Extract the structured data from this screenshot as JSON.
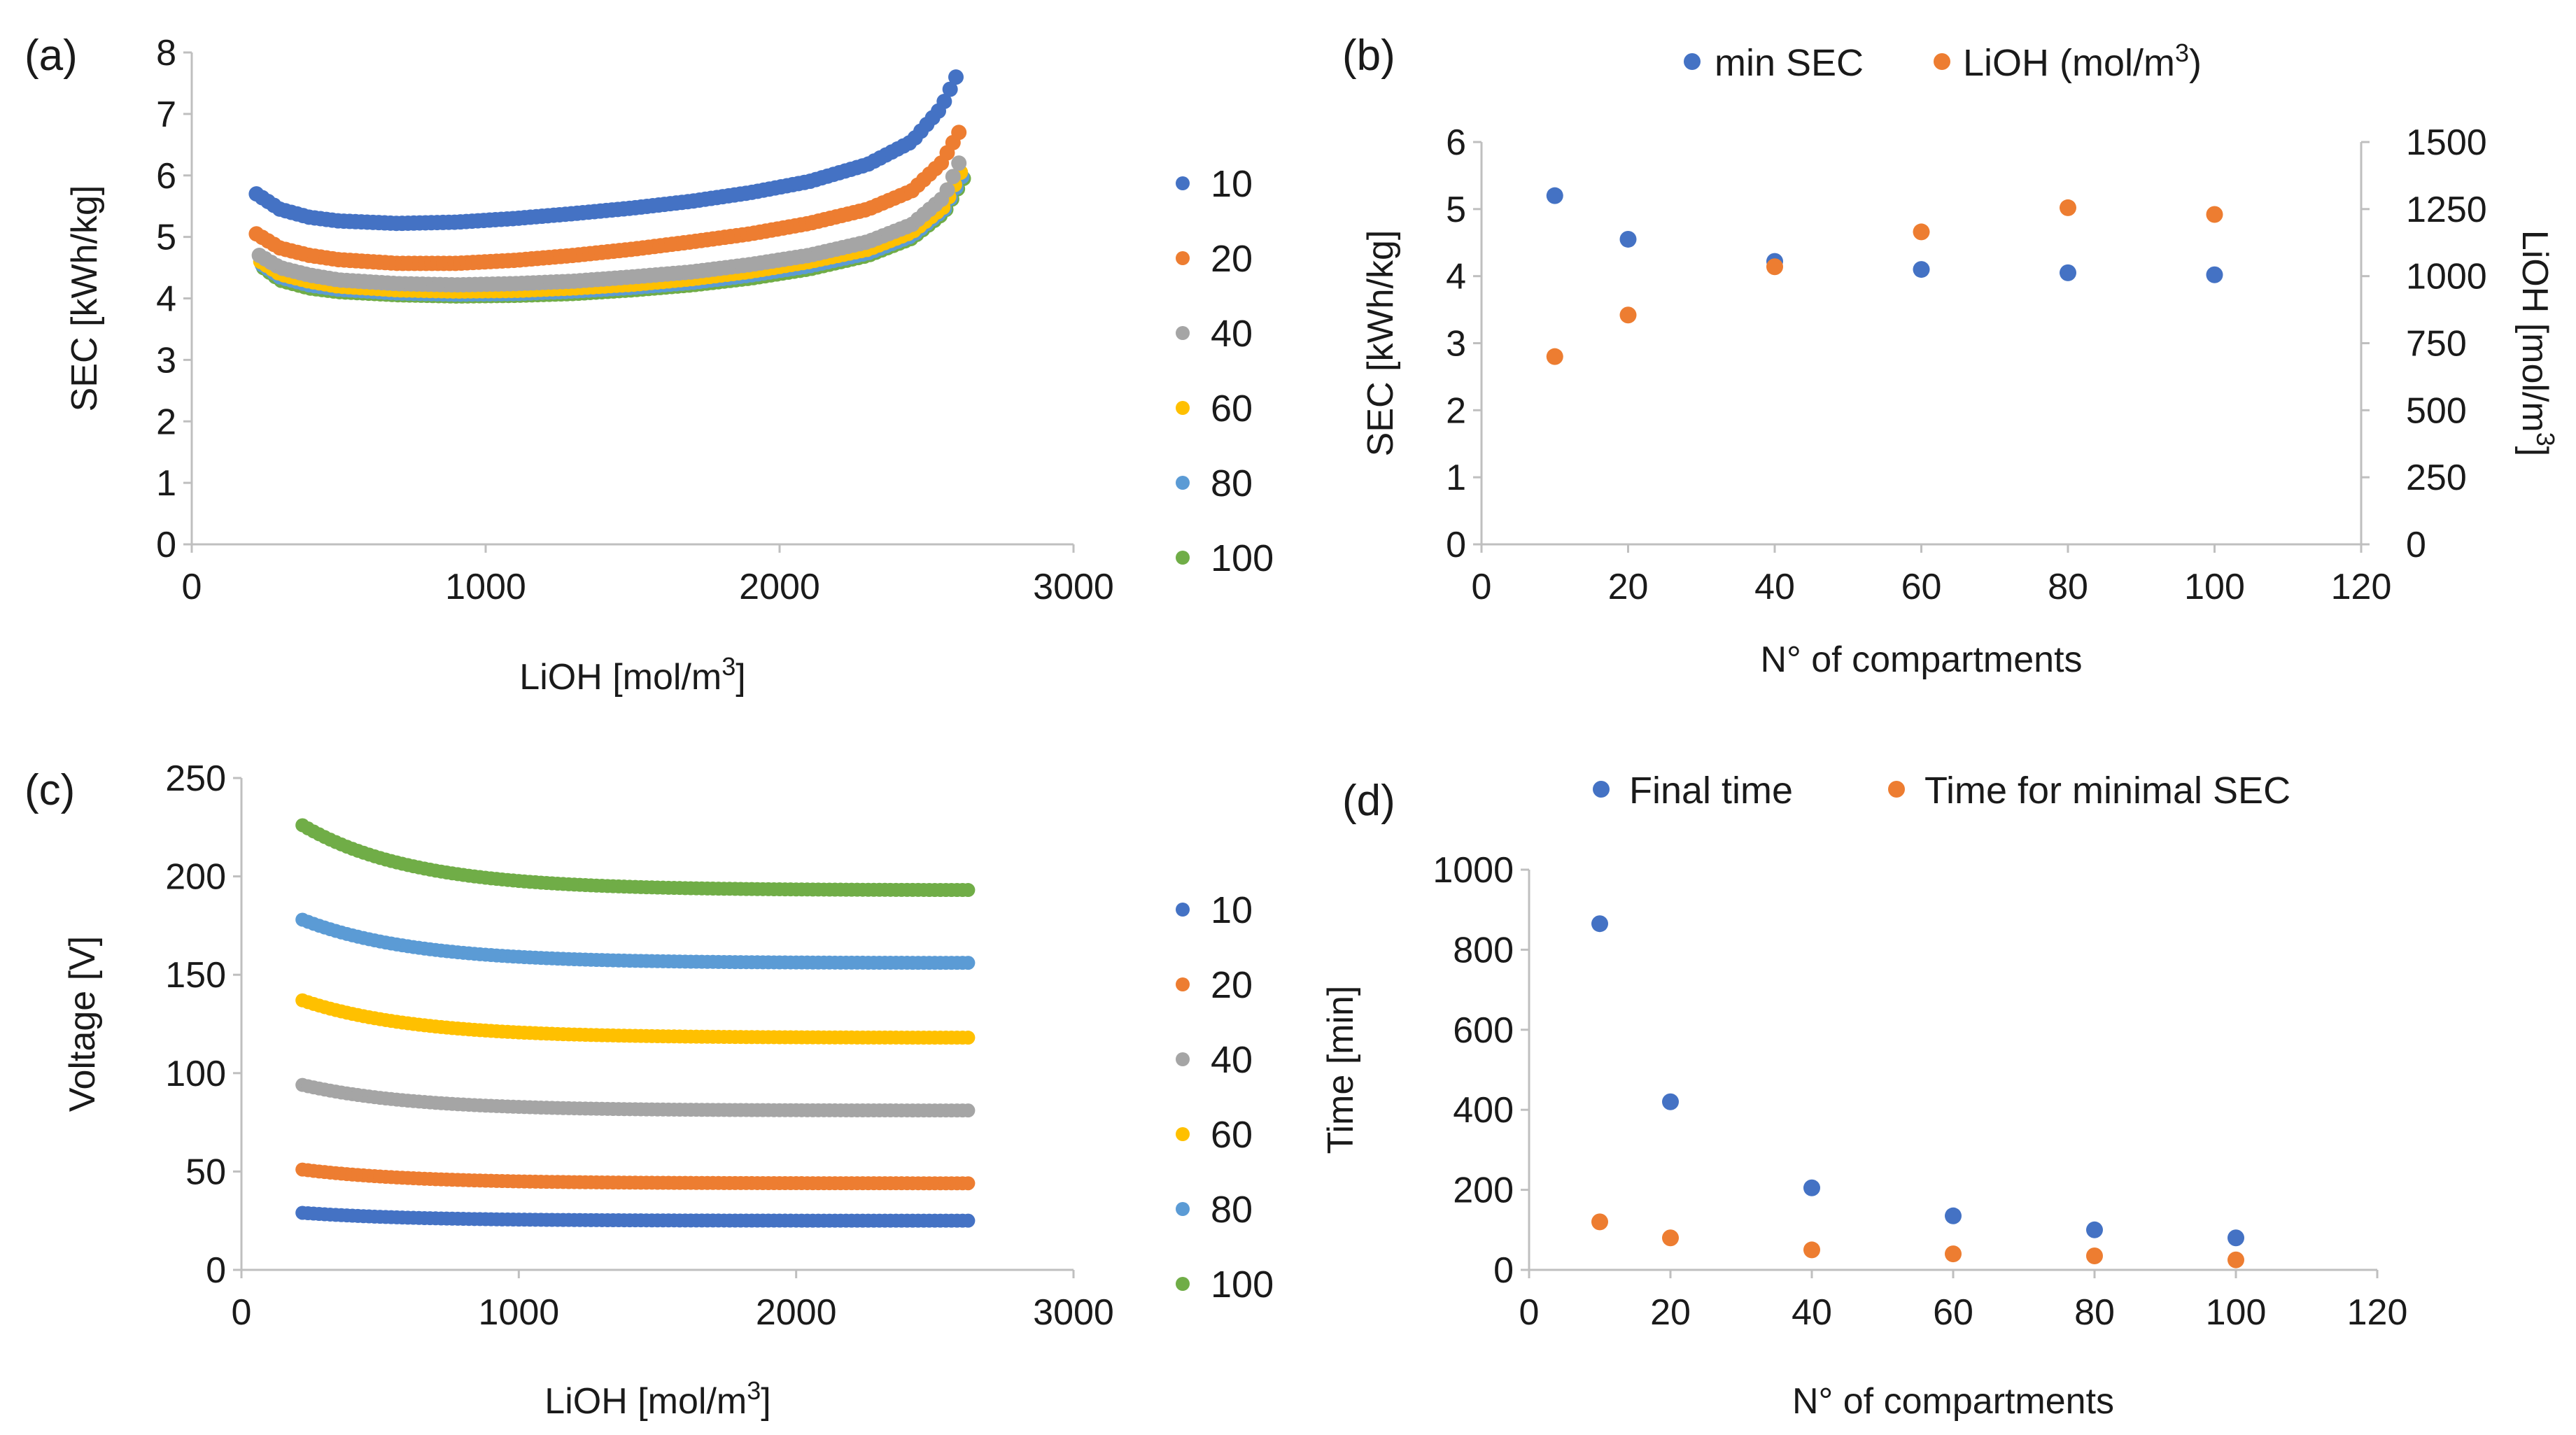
{
  "figure": {
    "panels": [
      {
        "letter": "(a)"
      },
      {
        "letter": "(b)"
      },
      {
        "letter": "(c)"
      },
      {
        "letter": "(d)"
      }
    ]
  },
  "colors": {
    "series_10": "#4472C4",
    "series_20": "#ED7D31",
    "series_40": "#A5A5A5",
    "series_60": "#FFC000",
    "series_80": "#5B9BD5",
    "series_100": "#70AD47"
  },
  "chart_data": [
    {
      "id": "a",
      "type": "scatter",
      "title": "",
      "xlabel": "LiOH [mol/m",
      "xlabel_sup": "3",
      "xlabel_end": "]",
      "ylabel": "SEC [kWh/kg]",
      "xlim": [
        0,
        3000
      ],
      "ylim": [
        0,
        8
      ],
      "xticks": [
        "0",
        "1000",
        "2000",
        "3000"
      ],
      "yticks": [
        "0",
        "1",
        "2",
        "3",
        "4",
        "5",
        "6",
        "7",
        "8"
      ],
      "legend": [
        "10",
        "20",
        "40",
        "60",
        "80",
        "100"
      ],
      "series": [
        {
          "name": "10",
          "color": "#4472C4",
          "points": [
            [
              220,
              5.7
            ],
            [
              300,
              5.45
            ],
            [
              400,
              5.32
            ],
            [
              500,
              5.26
            ],
            [
              700,
              5.22
            ],
            [
              900,
              5.24
            ],
            [
              1100,
              5.3
            ],
            [
              1300,
              5.38
            ],
            [
              1500,
              5.47
            ],
            [
              1700,
              5.58
            ],
            [
              1900,
              5.72
            ],
            [
              2100,
              5.9
            ],
            [
              2300,
              6.18
            ],
            [
              2450,
              6.55
            ],
            [
              2550,
              7.1
            ],
            [
              2600,
              7.6
            ]
          ]
        },
        {
          "name": "20",
          "color": "#ED7D31",
          "points": [
            [
              220,
              5.05
            ],
            [
              300,
              4.82
            ],
            [
              400,
              4.7
            ],
            [
              500,
              4.63
            ],
            [
              700,
              4.57
            ],
            [
              900,
              4.57
            ],
            [
              1100,
              4.62
            ],
            [
              1300,
              4.7
            ],
            [
              1500,
              4.8
            ],
            [
              1700,
              4.92
            ],
            [
              1900,
              5.05
            ],
            [
              2100,
              5.22
            ],
            [
              2300,
              5.45
            ],
            [
              2450,
              5.75
            ],
            [
              2550,
              6.2
            ],
            [
              2610,
              6.7
            ]
          ]
        },
        {
          "name": "40",
          "color": "#A5A5A5",
          "points": [
            [
              230,
              4.7
            ],
            [
              300,
              4.5
            ],
            [
              400,
              4.38
            ],
            [
              500,
              4.3
            ],
            [
              700,
              4.24
            ],
            [
              900,
              4.22
            ],
            [
              1100,
              4.24
            ],
            [
              1300,
              4.28
            ],
            [
              1500,
              4.35
            ],
            [
              1700,
              4.43
            ],
            [
              1900,
              4.55
            ],
            [
              2100,
              4.7
            ],
            [
              2300,
              4.92
            ],
            [
              2450,
              5.2
            ],
            [
              2560,
              5.65
            ],
            [
              2610,
              6.2
            ]
          ]
        },
        {
          "name": "60",
          "color": "#FFC000",
          "points": [
            [
              235,
              4.6
            ],
            [
              300,
              4.4
            ],
            [
              400,
              4.28
            ],
            [
              500,
              4.2
            ],
            [
              700,
              4.14
            ],
            [
              900,
              4.12
            ],
            [
              1100,
              4.13
            ],
            [
              1300,
              4.17
            ],
            [
              1500,
              4.23
            ],
            [
              1700,
              4.32
            ],
            [
              1900,
              4.44
            ],
            [
              2100,
              4.6
            ],
            [
              2300,
              4.8
            ],
            [
              2450,
              5.08
            ],
            [
              2560,
              5.5
            ],
            [
              2615,
              6.05
            ]
          ]
        },
        {
          "name": "80",
          "color": "#5B9BD5",
          "points": [
            [
              240,
              4.55
            ],
            [
              300,
              4.35
            ],
            [
              400,
              4.22
            ],
            [
              500,
              4.15
            ],
            [
              700,
              4.09
            ],
            [
              900,
              4.07
            ],
            [
              1100,
              4.08
            ],
            [
              1300,
              4.12
            ],
            [
              1500,
              4.18
            ],
            [
              1700,
              4.26
            ],
            [
              1900,
              4.38
            ],
            [
              2100,
              4.53
            ],
            [
              2300,
              4.74
            ],
            [
              2450,
              5.02
            ],
            [
              2560,
              5.45
            ],
            [
              2620,
              5.98
            ]
          ]
        },
        {
          "name": "100",
          "color": "#70AD47",
          "points": [
            [
              245,
              4.5
            ],
            [
              300,
              4.3
            ],
            [
              400,
              4.17
            ],
            [
              500,
              4.11
            ],
            [
              700,
              4.06
            ],
            [
              900,
              4.04
            ],
            [
              1100,
              4.05
            ],
            [
              1300,
              4.08
            ],
            [
              1500,
              4.14
            ],
            [
              1700,
              4.22
            ],
            [
              1900,
              4.33
            ],
            [
              2100,
              4.48
            ],
            [
              2300,
              4.7
            ],
            [
              2450,
              4.98
            ],
            [
              2560,
              5.4
            ],
            [
              2625,
              5.95
            ]
          ]
        }
      ]
    },
    {
      "id": "b",
      "type": "scatter",
      "title": "",
      "xlabel": "N° of compartments",
      "ylabel": "SEC [kWh/kg]",
      "y2label": "LiOH [mol/m",
      "y2label_sup": "3",
      "y2label_end": "]",
      "xlim": [
        0,
        120
      ],
      "ylim": [
        0,
        6
      ],
      "y2lim": [
        0,
        1500
      ],
      "xticks": [
        "0",
        "20",
        "40",
        "60",
        "80",
        "100",
        "120"
      ],
      "yticks": [
        "0",
        "1",
        "2",
        "3",
        "4",
        "5",
        "6"
      ],
      "y2ticks": [
        "0",
        "250",
        "500",
        "750",
        "1000",
        "1250",
        "1500"
      ],
      "legend": [
        "min SEC",
        "LiOH  (mol/m",
        "3",
        ")"
      ],
      "series": [
        {
          "name": "min SEC",
          "color": "#4472C4",
          "axis": "left",
          "x": [
            10,
            20,
            40,
            60,
            80,
            100
          ],
          "y": [
            5.2,
            4.55,
            4.22,
            4.1,
            4.05,
            4.02
          ]
        },
        {
          "name": "LiOH (mol/m3)",
          "color": "#ED7D31",
          "axis": "right",
          "x": [
            10,
            20,
            40,
            60,
            80,
            100
          ],
          "y": [
            700,
            855,
            1035,
            1165,
            1255,
            1230
          ]
        }
      ]
    },
    {
      "id": "c",
      "type": "scatter",
      "title": "",
      "xlabel": "LiOH [mol/m",
      "xlabel_sup": "3",
      "xlabel_end": "]",
      "ylabel": "Voltage [V]",
      "xlim": [
        0,
        3000
      ],
      "ylim": [
        0,
        250
      ],
      "xticks": [
        "0",
        "1000",
        "2000",
        "3000"
      ],
      "yticks": [
        "0",
        "50",
        "100",
        "150",
        "200",
        "250"
      ],
      "legend": [
        "10",
        "20",
        "40",
        "60",
        "80",
        "100"
      ],
      "series": [
        {
          "name": "10",
          "color": "#4472C4",
          "start": 29,
          "end": 25
        },
        {
          "name": "20",
          "color": "#ED7D31",
          "start": 51,
          "end": 44
        },
        {
          "name": "40",
          "color": "#A5A5A5",
          "start": 94,
          "end": 81
        },
        {
          "name": "60",
          "color": "#FFC000",
          "start": 137,
          "end": 118
        },
        {
          "name": "80",
          "color": "#5B9BD5",
          "start": 178,
          "end": 156
        },
        {
          "name": "100",
          "color": "#70AD47",
          "start": 226,
          "end": 193
        }
      ],
      "x_range": [
        220,
        2620
      ]
    },
    {
      "id": "d",
      "type": "scatter",
      "title": "",
      "xlabel": "N° of compartments",
      "ylabel": "Time [min]",
      "xlim": [
        0,
        120
      ],
      "ylim": [
        0,
        1000
      ],
      "xticks": [
        "0",
        "20",
        "40",
        "60",
        "80",
        "100",
        "120"
      ],
      "yticks": [
        "0",
        "200",
        "400",
        "600",
        "800",
        "1000"
      ],
      "legend": [
        "Final time",
        "Time for minimal SEC"
      ],
      "series": [
        {
          "name": "Final time",
          "color": "#4472C4",
          "x": [
            10,
            20,
            40,
            60,
            80,
            100
          ],
          "y": [
            865,
            420,
            205,
            135,
            100,
            80
          ]
        },
        {
          "name": "Time for minimal SEC",
          "color": "#ED7D31",
          "x": [
            10,
            20,
            40,
            60,
            80,
            100
          ],
          "y": [
            120,
            80,
            50,
            40,
            35,
            25
          ]
        }
      ]
    }
  ]
}
